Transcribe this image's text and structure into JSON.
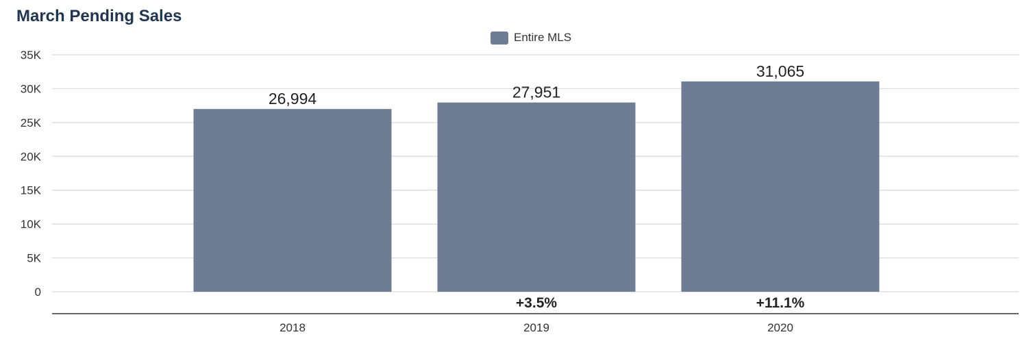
{
  "chart_data": {
    "type": "bar",
    "title": "March Pending Sales",
    "categories": [
      "2018",
      "2019",
      "2020"
    ],
    "series": [
      {
        "name": "Entire MLS",
        "values": [
          26994,
          27951,
          31065
        ]
      }
    ],
    "value_labels": [
      "26,994",
      "27,951",
      "31,065"
    ],
    "change_labels": [
      "",
      "+3.5%",
      "+11.1%"
    ],
    "y_ticks": [
      0,
      5000,
      10000,
      15000,
      20000,
      25000,
      30000,
      35000
    ],
    "y_tick_labels": [
      "0",
      "5K",
      "10K",
      "15K",
      "20K",
      "25K",
      "30K",
      "35K"
    ],
    "ylim": [
      0,
      35000
    ],
    "xlabel": "",
    "ylabel": "",
    "grid": true,
    "legend_position": "top-center",
    "colors": {
      "bar": "#6e7d93",
      "grid": "#d9d9d9",
      "axis": "#333333",
      "title": "#1f3552"
    }
  }
}
